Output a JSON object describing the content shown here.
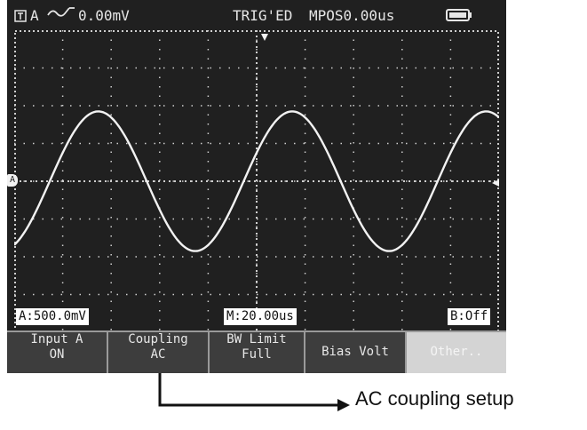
{
  "status_bar": {
    "channel_label": "A",
    "trigger_level": "0.00mV",
    "trigger_state": "TRIG'ED",
    "horizontal_position": "MPOS0.00us",
    "icons": [
      "channel-box-icon",
      "trigger-edge-icon",
      "battery-icon"
    ]
  },
  "readouts": {
    "channel_a_scale": "A:500.0mV",
    "timebase": "M:20.00us",
    "channel_b": "B:Off"
  },
  "markers": {
    "channel_marker": "A"
  },
  "softkeys": [
    {
      "line1": "Input A",
      "line2": "ON"
    },
    {
      "line1": "Coupling",
      "line2": "AC"
    },
    {
      "line1": "BW Limit",
      "line2": "Full"
    },
    {
      "line1": "Bias Volt",
      "line2": ""
    },
    {
      "line1": "Other..",
      "line2": ""
    }
  ],
  "annotation": {
    "text": "AC coupling setup"
  },
  "colors": {
    "screen_bg": "#202020",
    "trace": "#f2f2f2",
    "grid": "#cfcfcf",
    "softkey_bg": "#3d3d3d",
    "softkey_disabled": "#d4d4d4"
  },
  "waveform": {
    "type": "sine",
    "cycles_visible": 2.5,
    "amplitude_divisions": 1.85
  }
}
